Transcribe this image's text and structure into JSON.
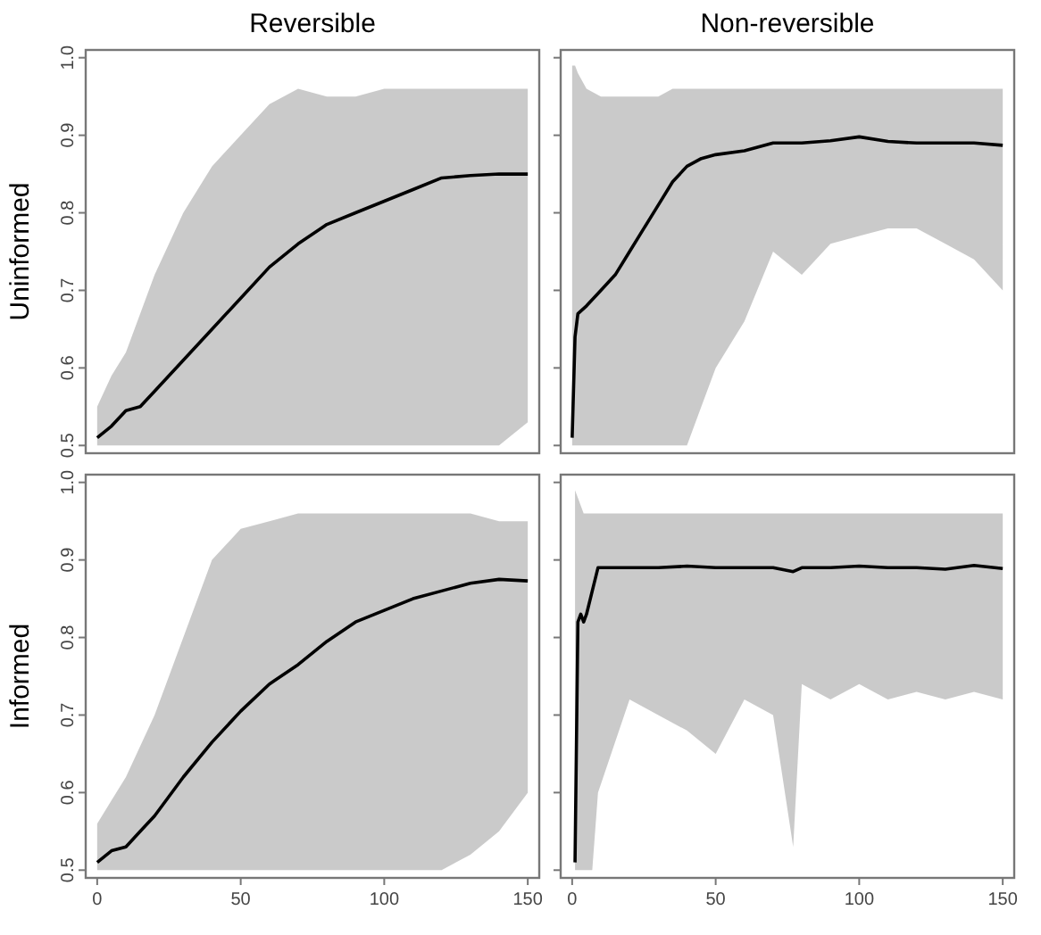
{
  "chart_data": [
    {
      "type": "line",
      "title": "Reversible",
      "ylabel": "Uninformed",
      "xlim": [
        -4,
        154
      ],
      "ylim": [
        0.49,
        1.01
      ],
      "xticks": [
        0,
        50,
        100,
        150
      ],
      "yticks": [
        0.5,
        0.6,
        0.7,
        0.8,
        0.9,
        {
          "value": 1,
          "label": "1.0"
        }
      ],
      "tick_labels": "y",
      "grid": false,
      "marker": "none",
      "line_style": "solid",
      "series": [
        {
          "color": "#000000",
          "x": [
            0,
            5,
            10,
            15,
            20,
            30,
            40,
            50,
            60,
            70,
            80,
            90,
            100,
            110,
            120,
            130,
            140,
            150
          ],
          "values": [
            0.51,
            0.525,
            0.545,
            0.55,
            0.57,
            0.61,
            0.65,
            0.69,
            0.73,
            0.76,
            0.785,
            0.8,
            0.815,
            0.83,
            0.845,
            0.848,
            0.85,
            0.85
          ],
          "lower": [
            0.5,
            0.5,
            0.5,
            0.5,
            0.5,
            0.5,
            0.5,
            0.5,
            0.5,
            0.5,
            0.5,
            0.5,
            0.5,
            0.5,
            0.5,
            0.5,
            0.5,
            0.53
          ],
          "upper": [
            0.55,
            0.59,
            0.62,
            0.67,
            0.72,
            0.8,
            0.86,
            0.9,
            0.94,
            0.96,
            0.95,
            0.95,
            0.96,
            0.96,
            0.96,
            0.96,
            0.96,
            0.96
          ]
        }
      ]
    },
    {
      "type": "line",
      "title": "Non-reversible",
      "xlim": [
        -4,
        154
      ],
      "ylim": [
        0.49,
        1.01
      ],
      "xticks": [
        0,
        50,
        100,
        150
      ],
      "yticks": [
        0.5,
        0.6,
        0.7,
        0.8,
        0.9,
        1.0
      ],
      "tick_labels": false,
      "grid": false,
      "marker": "none",
      "line_style": "solid",
      "series": [
        {
          "color": "#000000",
          "x": [
            0,
            1,
            2,
            5,
            10,
            15,
            20,
            25,
            30,
            35,
            40,
            45,
            50,
            60,
            70,
            80,
            90,
            100,
            110,
            120,
            130,
            140,
            150
          ],
          "values": [
            0.51,
            0.64,
            0.67,
            0.68,
            0.7,
            0.72,
            0.75,
            0.78,
            0.81,
            0.84,
            0.86,
            0.87,
            0.875,
            0.88,
            0.89,
            0.89,
            0.893,
            0.898,
            0.892,
            0.89,
            0.89,
            0.89,
            0.887
          ],
          "lower": [
            0.5,
            0.5,
            0.5,
            0.5,
            0.5,
            0.5,
            0.5,
            0.5,
            0.5,
            0.5,
            0.5,
            0.55,
            0.6,
            0.66,
            0.75,
            0.72,
            0.76,
            0.77,
            0.78,
            0.78,
            0.76,
            0.74,
            0.7
          ],
          "upper": [
            0.99,
            0.99,
            0.98,
            0.96,
            0.95,
            0.95,
            0.95,
            0.95,
            0.95,
            0.96,
            0.96,
            0.96,
            0.96,
            0.96,
            0.96,
            0.96,
            0.96,
            0.96,
            0.96,
            0.96,
            0.96,
            0.96,
            0.96
          ]
        }
      ]
    },
    {
      "type": "line",
      "ylabel": "Informed",
      "xlim": [
        -4,
        154
      ],
      "ylim": [
        0.49,
        1.01
      ],
      "xticks": [
        0,
        50,
        100,
        150
      ],
      "yticks": [
        0.5,
        0.6,
        0.7,
        0.8,
        0.9,
        {
          "value": 1,
          "label": "1.0"
        }
      ],
      "grid": false,
      "marker": "none",
      "line_style": "solid",
      "series": [
        {
          "color": "#000000",
          "x": [
            0,
            5,
            10,
            15,
            20,
            30,
            40,
            50,
            60,
            70,
            80,
            90,
            100,
            110,
            120,
            130,
            140,
            150
          ],
          "values": [
            0.51,
            0.525,
            0.53,
            0.55,
            0.57,
            0.62,
            0.665,
            0.705,
            0.74,
            0.765,
            0.795,
            0.82,
            0.835,
            0.85,
            0.86,
            0.87,
            0.875,
            0.873
          ],
          "lower": [
            0.5,
            0.5,
            0.5,
            0.5,
            0.5,
            0.5,
            0.5,
            0.5,
            0.5,
            0.5,
            0.5,
            0.5,
            0.5,
            0.5,
            0.5,
            0.52,
            0.55,
            0.6
          ],
          "upper": [
            0.56,
            0.59,
            0.62,
            0.66,
            0.7,
            0.8,
            0.9,
            0.94,
            0.95,
            0.96,
            0.96,
            0.96,
            0.96,
            0.96,
            0.96,
            0.96,
            0.95,
            0.95
          ]
        }
      ]
    },
    {
      "type": "line",
      "xlim": [
        -4,
        154
      ],
      "ylim": [
        0.49,
        1.01
      ],
      "xticks": [
        0,
        50,
        100,
        150
      ],
      "yticks": [
        0.5,
        0.6,
        0.7,
        0.8,
        0.9,
        1.0
      ],
      "tick_labels": "x",
      "grid": false,
      "marker": "none",
      "line_style": "solid",
      "series": [
        {
          "color": "#000000",
          "x": [
            1,
            2,
            3,
            4,
            5,
            7,
            9,
            20,
            30,
            40,
            50,
            60,
            70,
            77,
            80,
            90,
            100,
            110,
            120,
            130,
            140,
            150
          ],
          "values": [
            0.51,
            0.82,
            0.83,
            0.82,
            0.83,
            0.86,
            0.89,
            0.89,
            0.89,
            0.892,
            0.89,
            0.89,
            0.89,
            0.885,
            0.89,
            0.89,
            0.892,
            0.89,
            0.89,
            0.888,
            0.893,
            0.889
          ],
          "lower": [
            0.5,
            0.5,
            0.5,
            0.5,
            0.5,
            0.5,
            0.6,
            0.72,
            0.7,
            0.68,
            0.65,
            0.72,
            0.7,
            0.53,
            0.74,
            0.72,
            0.74,
            0.72,
            0.73,
            0.72,
            0.73,
            0.72
          ],
          "upper": [
            0.99,
            0.98,
            0.97,
            0.96,
            0.96,
            0.96,
            0.96,
            0.96,
            0.96,
            0.96,
            0.96,
            0.96,
            0.96,
            0.96,
            0.96,
            0.96,
            0.96,
            0.96,
            0.96,
            0.96,
            0.96,
            0.96
          ]
        }
      ]
    }
  ]
}
